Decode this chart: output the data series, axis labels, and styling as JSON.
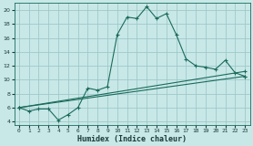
{
  "xlabel": "Humidex (Indice chaleur)",
  "bg_color": "#c8e8e8",
  "grid_color": "#a0c8c8",
  "line_color": "#1a6b5a",
  "xlim": [
    -0.5,
    23.5
  ],
  "ylim": [
    3.5,
    21.0
  ],
  "xticks": [
    0,
    1,
    2,
    3,
    4,
    5,
    6,
    7,
    8,
    9,
    10,
    11,
    12,
    13,
    14,
    15,
    16,
    17,
    18,
    19,
    20,
    21,
    22,
    23
  ],
  "yticks": [
    4,
    6,
    8,
    10,
    12,
    14,
    16,
    18,
    20
  ],
  "line1_x": [
    0,
    1,
    2,
    3,
    4,
    5,
    6,
    7,
    8,
    9,
    10,
    11,
    12,
    13,
    14,
    15,
    16,
    17,
    18,
    19,
    20,
    21,
    22,
    23
  ],
  "line1_y": [
    6.0,
    5.5,
    5.8,
    5.8,
    4.2,
    5.0,
    6.0,
    8.8,
    8.5,
    9.0,
    16.5,
    19.0,
    18.8,
    20.5,
    18.8,
    19.5,
    16.5,
    13.0,
    12.0,
    11.8,
    11.5,
    12.8,
    11.0,
    10.5
  ],
  "line2_x": [
    0,
    23
  ],
  "line2_y": [
    6.0,
    10.5
  ],
  "line3_x": [
    0,
    23
  ],
  "line3_y": [
    6.0,
    11.2
  ],
  "xlabel_fontsize": 6.0,
  "tick_fontsize": 4.5
}
